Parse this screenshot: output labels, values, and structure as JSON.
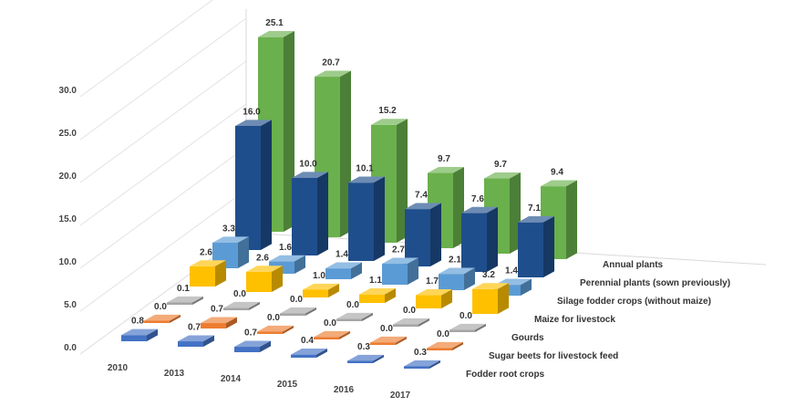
{
  "chart_data": {
    "type": "bar",
    "categories": [
      "2010",
      "2013",
      "2014",
      "2015",
      "2016",
      "2017"
    ],
    "y_ticks": [
      "0.0",
      "5.0",
      "10.0",
      "15.0",
      "20.0",
      "25.0",
      "30.0"
    ],
    "ylim": [
      0,
      30
    ],
    "grid": true,
    "series": [
      {
        "name": "Annual plants",
        "color": "#6ab04c",
        "values": [
          25.1,
          20.7,
          15.2,
          9.7,
          9.7,
          9.4
        ],
        "labels": [
          "25.1",
          "20.7",
          "15.2",
          "9.7",
          "9.7",
          "9.4"
        ]
      },
      {
        "name": "Perennial plants (sown previously)",
        "color": "#1f4e8c",
        "values": [
          16.0,
          10.0,
          10.1,
          7.4,
          7.6,
          7.1
        ],
        "labels": [
          "16.0",
          "10.0",
          "10.1",
          "7.4",
          "7.6",
          "7.1"
        ]
      },
      {
        "name": "Silage fodder crops (without maize)",
        "color": "#5b9bd5",
        "values": [
          3.3,
          1.6,
          1.4,
          2.7,
          2.1,
          1.4
        ],
        "labels": [
          "3.3",
          "1.6",
          "1.4",
          "2.7",
          "2.1",
          "1.4"
        ]
      },
      {
        "name": "Maize for livestock",
        "color": "#ffc000",
        "values": [
          2.6,
          2.6,
          1.0,
          1.1,
          1.7,
          3.2
        ],
        "labels": [
          "2.6",
          "2.6",
          "1.0",
          "1.1",
          "1.7",
          "3.2"
        ]
      },
      {
        "name": "Gourds",
        "color": "#a5a5a5",
        "values": [
          0.1,
          0.0,
          0.0,
          0.0,
          0.0,
          0.0
        ],
        "labels": [
          "0.1",
          "0.0",
          "0.0",
          "0.0",
          "0.0",
          "0.0"
        ]
      },
      {
        "name": "Sugar beets for livestock feed",
        "color": "#ed7d31",
        "values": [
          0.0,
          0.7,
          0.0,
          0.0,
          0.0,
          0.0
        ],
        "labels": [
          "0.0",
          "0.7",
          "0.0",
          "0.0",
          "0.0",
          "0.0"
        ]
      },
      {
        "name": "Fodder root crops",
        "color": "#4472c4",
        "values": [
          0.8,
          0.7,
          0.7,
          0.4,
          0.3,
          0.3
        ],
        "labels": [
          "0.8",
          "0.7",
          "0.7",
          "0.4",
          "0.3",
          "0.3"
        ]
      }
    ]
  }
}
